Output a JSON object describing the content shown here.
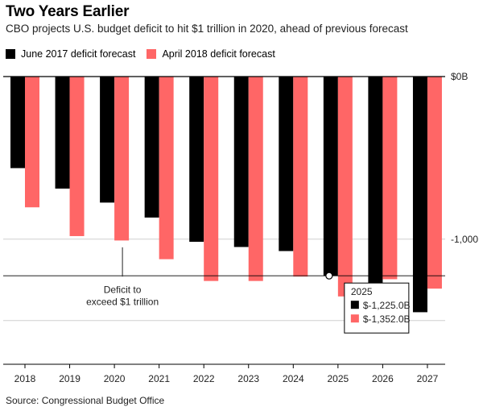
{
  "title": "Two Years Earlier",
  "subtitle": "CBO projects U.S. budget deficit  to hit $1 trillion  in 2020, ahead  of previous forecast",
  "source": "Source: Congressional Budget Office",
  "colors": {
    "june2017": "#000000",
    "april2018": "#ff6666"
  },
  "chart_data": {
    "type": "bar",
    "categories": [
      "2018",
      "2019",
      "2020",
      "2021",
      "2022",
      "2023",
      "2024",
      "2025",
      "2026",
      "2027"
    ],
    "series": [
      {
        "name": "June 2017 deficit forecast",
        "values": [
          -563,
          -689,
          -775,
          -867,
          -1016,
          -1048,
          -1073,
          -1225,
          -1309,
          -1449
        ]
      },
      {
        "name": "April 2018 deficit forecast",
        "values": [
          -804,
          -981,
          -1008,
          -1123,
          -1257,
          -1257,
          -1230,
          -1352,
          -1246,
          -1304
        ]
      }
    ],
    "ylim": [
      -1800,
      0
    ],
    "yticks": [
      {
        "value": 0,
        "label": "$0B"
      },
      {
        "value": -1000,
        "label": "-1,000"
      }
    ],
    "grid": true,
    "legend_position": "top-left",
    "annotation": {
      "category": "2020",
      "text_lines": [
        "Deficit to",
        "exceed $1 trillion"
      ]
    },
    "reference_line": {
      "value": -1225
    },
    "tooltip": {
      "category": "2025",
      "title": "2025",
      "rows": [
        {
          "series": 0,
          "label": "$-1,225.0B"
        },
        {
          "series": 1,
          "label": "$-1,352.0B"
        }
      ]
    }
  }
}
